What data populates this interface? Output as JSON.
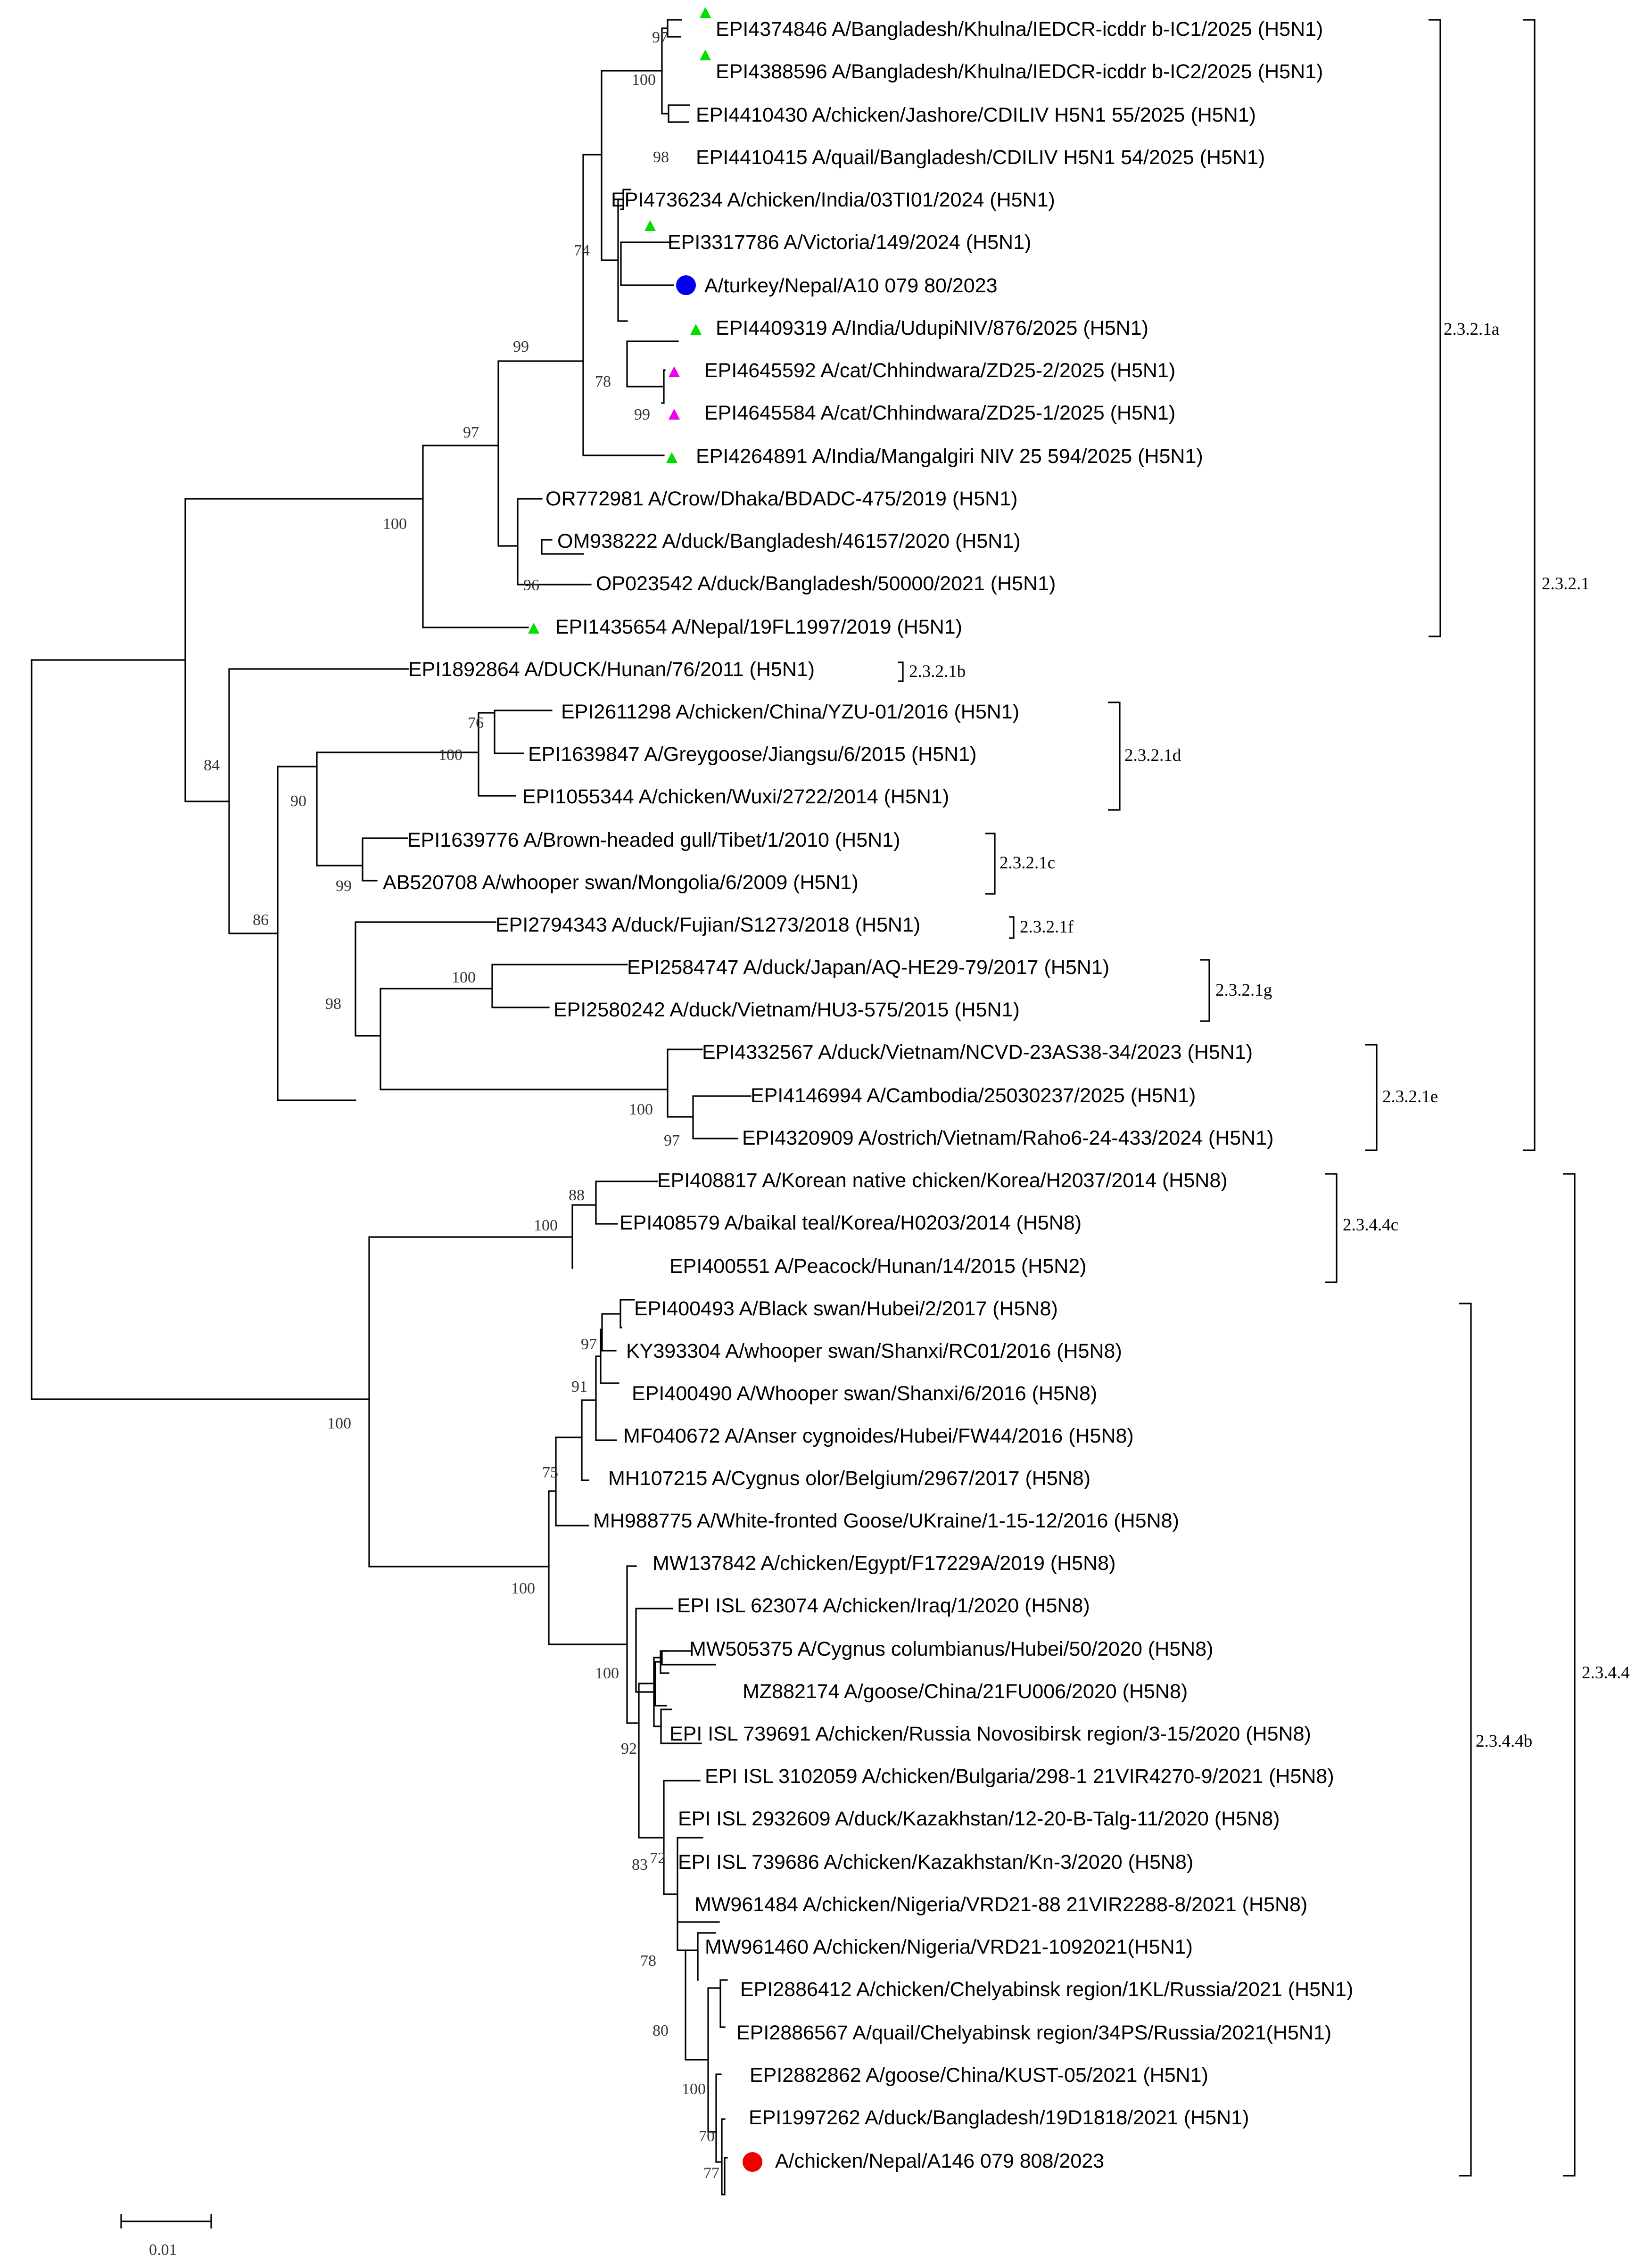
{
  "tips": [
    "EPI4374846 A/Bangladesh/Khulna/IEDCR-icddr b-IC1/2025 (H5N1)",
    "EPI4388596 A/Bangladesh/Khulna/IEDCR-icddr b-IC2/2025 (H5N1)",
    "EPI4410430 A/chicken/Jashore/CDILIV H5N1 55/2025 (H5N1)",
    "EPI4410415 A/quail/Bangladesh/CDILIV H5N1 54/2025 (H5N1)",
    "EPI4736234 A/chicken/India/03TI01/2024 (H5N1)",
    "EPI3317786 A/Victoria/149/2024 (H5N1)",
    "A/turkey/Nepal/A10 079 80/2023",
    "EPI4409319 A/India/UdupiNIV/876/2025 (H5N1)",
    "EPI4645592 A/cat/Chhindwara/ZD25-2/2025 (H5N1)",
    "EPI4645584 A/cat/Chhindwara/ZD25-1/2025 (H5N1)",
    "EPI4264891 A/India/Mangalgiri NIV 25 594/2025 (H5N1)",
    "OR772981 A/Crow/Dhaka/BDADC-475/2019 (H5N1)",
    "OM938222 A/duck/Bangladesh/46157/2020 (H5N1)",
    "OP023542 A/duck/Bangladesh/50000/2021 (H5N1)",
    "EPI1435654 A/Nepal/19FL1997/2019 (H5N1)",
    "EPI1892864 A/DUCK/Hunan/76/2011 (H5N1)",
    "EPI2611298 A/chicken/China/YZU-01/2016 (H5N1)",
    "EPI1639847 A/Greygoose/Jiangsu/6/2015 (H5N1)",
    "EPI1055344 A/chicken/Wuxi/2722/2014 (H5N1)",
    "EPI1639776 A/Brown-headed gull/Tibet/1/2010 (H5N1)",
    "AB520708 A/whooper swan/Mongolia/6/2009 (H5N1)",
    "EPI2794343 A/duck/Fujian/S1273/2018 (H5N1)",
    "EPI2584747 A/duck/Japan/AQ-HE29-79/2017 (H5N1)",
    "EPI2580242 A/duck/Vietnam/HU3-575/2015 (H5N1)",
    "EPI4332567 A/duck/Vietnam/NCVD-23AS38-34/2023 (H5N1)",
    "EPI4146994 A/Cambodia/25030237/2025 (H5N1)",
    "EPI4320909 A/ostrich/Vietnam/Raho6-24-433/2024 (H5N1)",
    "EPI408817 A/Korean native chicken/Korea/H2037/2014 (H5N8)",
    "EPI408579 A/baikal teal/Korea/H0203/2014 (H5N8)",
    "EPI400551 A/Peacock/Hunan/14/2015 (H5N2)",
    "EPI400493 A/Black swan/Hubei/2/2017 (H5N8)",
    "KY393304 A/whooper swan/Shanxi/RC01/2016 (H5N8)",
    "EPI400490 A/Whooper swan/Shanxi/6/2016 (H5N8)",
    "MF040672 A/Anser cygnoides/Hubei/FW44/2016 (H5N8)",
    "MH107215 A/Cygnus olor/Belgium/2967/2017 (H5N8)",
    "MH988775 A/White-fronted Goose/UKraine/1-15-12/2016 (H5N8)",
    "MW137842 A/chicken/Egypt/F17229A/2019 (H5N8)",
    "EPI ISL 623074 A/chicken/Iraq/1/2020 (H5N8)",
    "MW505375 A/Cygnus columbianus/Hubei/50/2020 (H5N8)",
    "MZ882174 A/goose/China/21FU006/2020 (H5N8)",
    "EPI ISL 739691 A/chicken/Russia Novosibirsk region/3-15/2020 (H5N8)",
    "EPI ISL 3102059 A/chicken/Bulgaria/298-1 21VIR4270-9/2021 (H5N8)",
    "EPI ISL 2932609 A/duck/Kazakhstan/12-20-B-Talg-11/2020 (H5N8)",
    "EPI ISL 739686 A/chicken/Kazakhstan/Kn-3/2020 (H5N8)",
    "MW961484 A/chicken/Nigeria/VRD21-88 21VIR2288-8/2021 (H5N8)",
    "MW961460 A/chicken/Nigeria/VRD21-1092021(H5N1)",
    "EPI2886412 A/chicken/Chelyabinsk region/1KL/Russia/2021 (H5N1)",
    "EPI2886567 A/quail/Chelyabinsk region/34PS/Russia/2021(H5N1)",
    "EPI2882862 A/goose/China/KUST-05/2021 (H5N1)",
    "EPI1997262 A/duck/Bangladesh/19D1818/2021 (H5N1)",
    "A/chicken/Nepal/A146 079 808/2023"
  ],
  "bootstrap": [
    "97",
    "100",
    "98",
    "74",
    "99",
    "78",
    "99",
    "97",
    "96",
    "100",
    "76",
    "100",
    "90",
    "99",
    "84",
    "86",
    "98",
    "100",
    "100",
    "97",
    "88",
    "100",
    "100",
    "97",
    "91",
    "75",
    "100",
    "100",
    "92",
    "83",
    "72",
    "78",
    "80",
    "100",
    "70",
    "77"
  ],
  "clades": [
    "2.3.2.1a",
    "2.3.2.1b",
    "2.3.2.1d",
    "2.3.2.1c",
    "2.3.2.1f",
    "2.3.2.1g",
    "2.3.2.1e",
    "2.3.2.1",
    "2.3.4.4c",
    "2.3.4.4b",
    "2.3.4.4"
  ],
  "scale_label": "0.01",
  "legend_markers": {
    "green_triangle": "#00dd00",
    "magenta_triangle": "#ee00ee",
    "blue_circle": "#0000ee",
    "red_circle": "#ee0000"
  }
}
